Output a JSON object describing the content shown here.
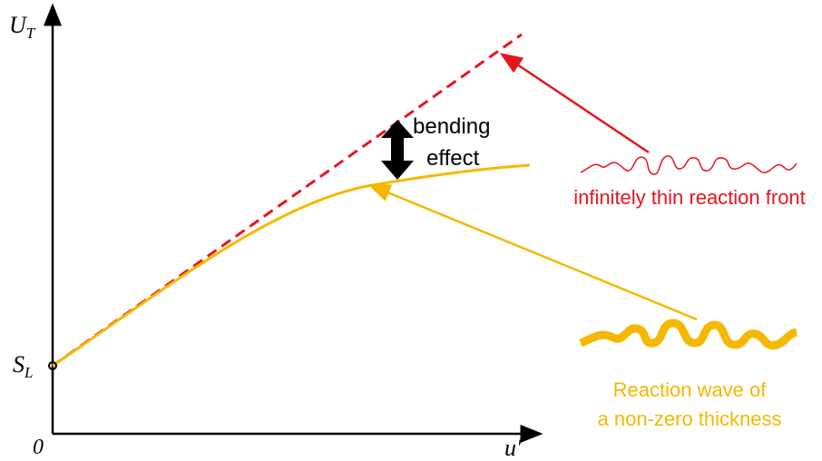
{
  "axes": {
    "y_label": {
      "main": "U",
      "sub": "T"
    },
    "x_label": "u′",
    "origin": "0",
    "intercept": {
      "main": "S",
      "sub": "L"
    }
  },
  "annotation": {
    "line1": "bending",
    "line2": "effect"
  },
  "thin_front": {
    "label": "infinitely thin reaction front"
  },
  "thick_wave": {
    "line1": "Reaction wave of",
    "line2": "a non-zero thickness"
  }
}
